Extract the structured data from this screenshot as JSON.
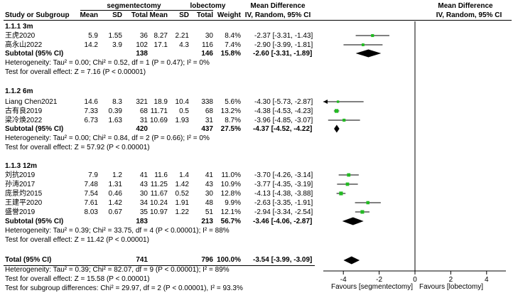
{
  "header": {
    "exp_group": "segmentectomy",
    "ctl_group": "lobectomy",
    "study_col": "Study or Subgroup",
    "mean": "Mean",
    "sd": "SD",
    "total": "Total",
    "weight": "Weight",
    "md_title": "Mean Difference",
    "md_method": "IV, Random, 95% CI"
  },
  "subgroups": [
    {
      "title": "1.1.1 3m",
      "studies": [
        {
          "name": "王虎2020",
          "e_mean": "5.9",
          "e_sd": "1.55",
          "e_n": "36",
          "c_mean": "8.27",
          "c_sd": "2.21",
          "c_n": "30",
          "weight": "8.4%",
          "ci_text": "-2.37 [-3.31, -1.43]"
        },
        {
          "name": "高永山2022",
          "e_mean": "14.2",
          "e_sd": "3.9",
          "e_n": "102",
          "c_mean": "17.1",
          "c_sd": "4.3",
          "c_n": "116",
          "weight": "7.4%",
          "ci_text": "-2.90 [-3.99, -1.81]"
        }
      ],
      "subtotal": {
        "label": "Subtotal (95% CI)",
        "e_n": "138",
        "c_n": "146",
        "weight": "15.8%",
        "ci_text": "-2.60 [-3.31, -1.89]"
      },
      "heterogeneity": "Heterogeneity: Tau² = 0.00; Chi² = 0.52, df = 1 (P = 0.47); I² = 0%",
      "overall": "Test for overall effect: Z = 7.16 (P < 0.00001)"
    },
    {
      "title": "1.1.2 6m",
      "studies": [
        {
          "name": "Liang Chen2021",
          "e_mean": "14.6",
          "e_sd": "8.3",
          "e_n": "321",
          "c_mean": "18.9",
          "c_sd": "10.4",
          "c_n": "338",
          "weight": "5.6%",
          "ci_text": "-4.30 [-5.73, -2.87]"
        },
        {
          "name": "古有良2019",
          "e_mean": "7.33",
          "e_sd": "0.39",
          "e_n": "68",
          "c_mean": "11.71",
          "c_sd": "0.5",
          "c_n": "68",
          "weight": "13.2%",
          "ci_text": "-4.38 [-4.53, -4.23]"
        },
        {
          "name": "梁冷焕2022",
          "e_mean": "6.73",
          "e_sd": "1.63",
          "e_n": "31",
          "c_mean": "10.69",
          "c_sd": "1.93",
          "c_n": "31",
          "weight": "8.7%",
          "ci_text": "-3.96 [-4.85, -3.07]"
        }
      ],
      "subtotal": {
        "label": "Subtotal (95% CI)",
        "e_n": "420",
        "c_n": "437",
        "weight": "27.5%",
        "ci_text": "-4.37 [-4.52, -4.22]"
      },
      "heterogeneity": "Heterogeneity: Tau² = 0.00; Chi² = 0.84, df = 2 (P = 0.66); I² = 0%",
      "overall": "Test for overall effect: Z = 57.92 (P < 0.00001)"
    },
    {
      "title": "1.1.3 12m",
      "studies": [
        {
          "name": "刘抗2019",
          "e_mean": "7.9",
          "e_sd": "1.2",
          "e_n": "41",
          "c_mean": "11.6",
          "c_sd": "1.4",
          "c_n": "41",
          "weight": "11.0%",
          "ci_text": "-3.70 [-4.26, -3.14]"
        },
        {
          "name": "孙涛2017",
          "e_mean": "7.48",
          "e_sd": "1.31",
          "e_n": "43",
          "c_mean": "11.25",
          "c_sd": "1.42",
          "c_n": "43",
          "weight": "10.9%",
          "ci_text": "-3.77 [-4.35, -3.19]"
        },
        {
          "name": "庞景灼2015",
          "e_mean": "7.54",
          "e_sd": "0.46",
          "e_n": "30",
          "c_mean": "11.67",
          "c_sd": "0.52",
          "c_n": "30",
          "weight": "12.8%",
          "ci_text": "-4.13 [-4.38, -3.88]"
        },
        {
          "name": "王建平2020",
          "e_mean": "7.61",
          "e_sd": "1.42",
          "e_n": "34",
          "c_mean": "10.24",
          "c_sd": "1.91",
          "c_n": "48",
          "weight": "9.9%",
          "ci_text": "-2.63 [-3.35, -1.91]"
        },
        {
          "name": "盛誉2019",
          "e_mean": "8.03",
          "e_sd": "0.67",
          "e_n": "35",
          "c_mean": "10.97",
          "c_sd": "1.22",
          "c_n": "51",
          "weight": "12.1%",
          "ci_text": "-2.94 [-3.34, -2.54]"
        }
      ],
      "subtotal": {
        "label": "Subtotal (95% CI)",
        "e_n": "183",
        "c_n": "213",
        "weight": "56.7%",
        "ci_text": "-3.46 [-4.06, -2.87]"
      },
      "heterogeneity": "Heterogeneity: Tau² = 0.39; Chi² = 33.75, df = 4 (P < 0.00001); I² = 88%",
      "overall": "Test for overall effect: Z = 11.42 (P < 0.00001)"
    }
  ],
  "total": {
    "label": "Total (95% CI)",
    "e_n": "741",
    "c_n": "796",
    "weight": "100.0%",
    "ci_text": "-3.54 [-3.99, -3.09]",
    "heterogeneity": "Heterogeneity: Tau² = 0.39; Chi² = 82.07, df = 9 (P < 0.00001); I² = 89%",
    "overall": "Test for overall effect: Z = 15.58 (P < 0.00001)",
    "subgroup_diff": "Test for subgroup differences: Chi² = 29.97, df = 2 (P < 0.00001), I² = 93.3%"
  },
  "axis": {
    "left_label": "Favours [segmentectomy]",
    "right_label": "Favours [lobectomy]"
  },
  "colors": {
    "marker": "#22bb22",
    "line": "#000000"
  },
  "chart_data": {
    "type": "forest",
    "title": "Mean Difference IV, Random, 95% CI",
    "xlabel_left": "Favours [segmentectomy]",
    "xlabel_right": "Favours [lobectomy]",
    "xlim": [
      -5,
      5
    ],
    "ticks": [
      -4,
      -2,
      0,
      2,
      4
    ],
    "tick_labels": [
      "-4",
      "-2",
      "0",
      "2",
      "4"
    ],
    "studies": [
      {
        "name": "王虎2020",
        "est": -2.37,
        "lo": -3.31,
        "hi": -1.43,
        "weight": 8.4
      },
      {
        "name": "高永山2022",
        "est": -2.9,
        "lo": -3.99,
        "hi": -1.81,
        "weight": 7.4
      },
      {
        "name": "Liang Chen2021",
        "est": -4.3,
        "lo": -5.73,
        "hi": -2.87,
        "weight": 5.6
      },
      {
        "name": "古有良2019",
        "est": -4.38,
        "lo": -4.53,
        "hi": -4.23,
        "weight": 13.2
      },
      {
        "name": "梁冷焕2022",
        "est": -3.96,
        "lo": -4.85,
        "hi": -3.07,
        "weight": 8.7
      },
      {
        "name": "刘抗2019",
        "est": -3.7,
        "lo": -4.26,
        "hi": -3.14,
        "weight": 11.0
      },
      {
        "name": "孙涛2017",
        "est": -3.77,
        "lo": -4.35,
        "hi": -3.19,
        "weight": 10.9
      },
      {
        "name": "庞景灼2015",
        "est": -4.13,
        "lo": -4.38,
        "hi": -3.88,
        "weight": 12.8
      },
      {
        "name": "王建平2020",
        "est": -2.63,
        "lo": -3.35,
        "hi": -1.91,
        "weight": 9.9
      },
      {
        "name": "盛誉2019",
        "est": -2.94,
        "lo": -3.34,
        "hi": -2.54,
        "weight": 12.1
      }
    ],
    "summaries": [
      {
        "name": "Subtotal 3m",
        "est": -2.6,
        "lo": -3.31,
        "hi": -1.89
      },
      {
        "name": "Subtotal 6m",
        "est": -4.37,
        "lo": -4.52,
        "hi": -4.22
      },
      {
        "name": "Subtotal 12m",
        "est": -3.46,
        "lo": -4.06,
        "hi": -2.87
      },
      {
        "name": "Total",
        "est": -3.54,
        "lo": -3.99,
        "hi": -3.09
      }
    ]
  }
}
